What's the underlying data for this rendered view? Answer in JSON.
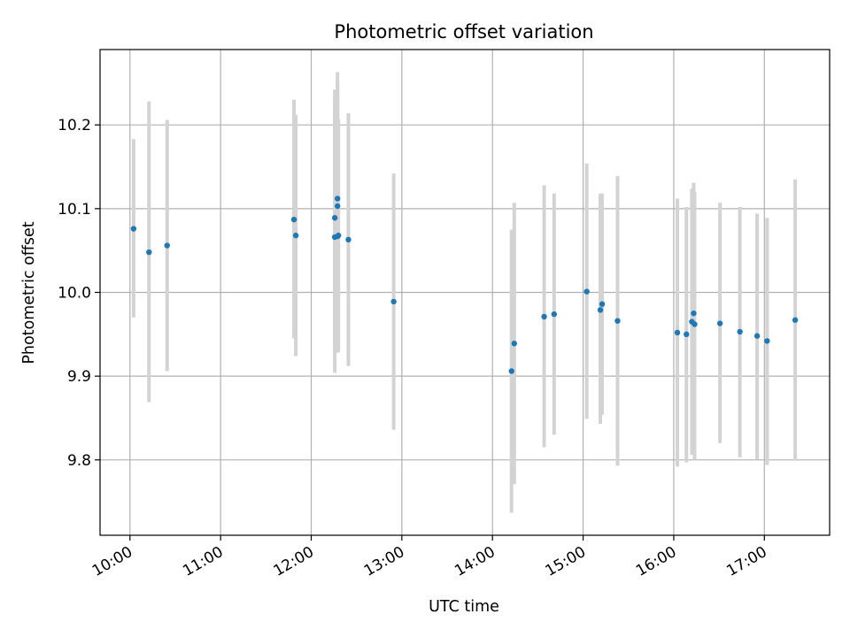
{
  "chart_data": {
    "type": "scatter",
    "title": "Photometric offset variation",
    "xlabel": "UTC time",
    "ylabel": "Photometric offset",
    "grid": true,
    "legend": "none",
    "x_unit": "hours UTC",
    "xlim": [
      9.67,
      17.72
    ],
    "ylim": [
      9.71,
      10.29
    ],
    "x_ticks": [
      {
        "value": 10,
        "label": "10:00"
      },
      {
        "value": 11,
        "label": "11:00"
      },
      {
        "value": 12,
        "label": "12:00"
      },
      {
        "value": 13,
        "label": "13:00"
      },
      {
        "value": 14,
        "label": "14:00"
      },
      {
        "value": 15,
        "label": "15:00"
      },
      {
        "value": 16,
        "label": "16:00"
      },
      {
        "value": 17,
        "label": "17:00"
      }
    ],
    "y_ticks": [
      {
        "value": 9.8,
        "label": "9.8"
      },
      {
        "value": 9.9,
        "label": "9.9"
      },
      {
        "value": 10.0,
        "label": "10.0"
      },
      {
        "value": 10.1,
        "label": "10.1"
      },
      {
        "value": 10.2,
        "label": "10.2"
      }
    ],
    "colors": {
      "point": "#1f77b4",
      "errorbar": "#d3d3d3",
      "grid": "#b0b0b0"
    },
    "series": [
      {
        "points": [
          {
            "x": 10.04,
            "y": 10.076,
            "lo": 9.97,
            "hi": 10.183
          },
          {
            "x": 10.21,
            "y": 10.048,
            "lo": 9.869,
            "hi": 10.228
          },
          {
            "x": 10.41,
            "y": 10.056,
            "lo": 9.906,
            "hi": 10.206
          },
          {
            "x": 11.81,
            "y": 10.087,
            "lo": 9.945,
            "hi": 10.23
          },
          {
            "x": 11.83,
            "y": 10.068,
            "lo": 9.924,
            "hi": 10.212
          },
          {
            "x": 12.26,
            "y": 10.089,
            "lo": 9.935,
            "hi": 10.242
          },
          {
            "x": 12.26,
            "y": 10.066,
            "lo": 9.904,
            "hi": 10.23
          },
          {
            "x": 12.29,
            "y": 10.067,
            "lo": 9.928,
            "hi": 10.263
          },
          {
            "x": 12.29,
            "y": 10.112,
            "lo": 9.966,
            "hi": 10.252
          },
          {
            "x": 12.3,
            "y": 10.068,
            "lo": 9.929,
            "hi": 10.207
          },
          {
            "x": 12.29,
            "y": 10.103,
            "lo": 9.945,
            "hi": 10.238
          },
          {
            "x": 12.41,
            "y": 10.063,
            "lo": 9.912,
            "hi": 10.214
          },
          {
            "x": 12.91,
            "y": 9.989,
            "lo": 9.836,
            "hi": 10.142
          },
          {
            "x": 14.21,
            "y": 9.906,
            "lo": 9.737,
            "hi": 10.075
          },
          {
            "x": 14.24,
            "y": 9.939,
            "lo": 9.771,
            "hi": 10.107
          },
          {
            "x": 14.57,
            "y": 9.971,
            "lo": 9.815,
            "hi": 10.128
          },
          {
            "x": 14.68,
            "y": 9.974,
            "lo": 9.83,
            "hi": 10.118
          },
          {
            "x": 15.04,
            "y": 10.001,
            "lo": 9.849,
            "hi": 10.154
          },
          {
            "x": 15.19,
            "y": 9.979,
            "lo": 9.843,
            "hi": 10.118
          },
          {
            "x": 15.21,
            "y": 9.986,
            "lo": 9.854,
            "hi": 10.118
          },
          {
            "x": 15.38,
            "y": 9.966,
            "lo": 9.793,
            "hi": 10.139
          },
          {
            "x": 16.04,
            "y": 9.952,
            "lo": 9.792,
            "hi": 10.112
          },
          {
            "x": 16.14,
            "y": 9.95,
            "lo": 9.797,
            "hi": 10.102
          },
          {
            "x": 16.2,
            "y": 9.965,
            "lo": 9.806,
            "hi": 10.124
          },
          {
            "x": 16.22,
            "y": 9.975,
            "lo": 9.818,
            "hi": 10.131
          },
          {
            "x": 16.23,
            "y": 9.962,
            "lo": 9.8,
            "hi": 10.12
          },
          {
            "x": 16.51,
            "y": 9.963,
            "lo": 9.82,
            "hi": 10.107
          },
          {
            "x": 16.73,
            "y": 9.953,
            "lo": 9.803,
            "hi": 10.102
          },
          {
            "x": 16.92,
            "y": 9.948,
            "lo": 9.801,
            "hi": 10.094
          },
          {
            "x": 17.03,
            "y": 9.942,
            "lo": 9.794,
            "hi": 10.089
          },
          {
            "x": 17.34,
            "y": 9.967,
            "lo": 9.799,
            "hi": 10.135
          }
        ]
      }
    ]
  }
}
